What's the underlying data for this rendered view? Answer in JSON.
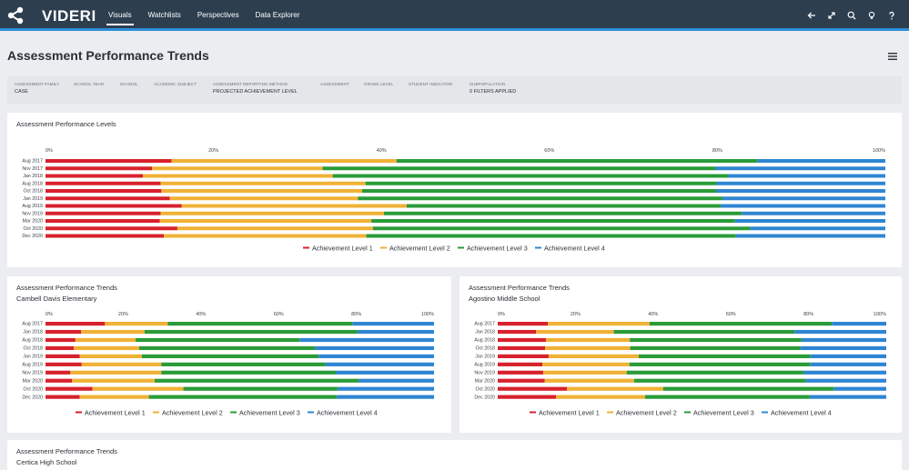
{
  "app": {
    "brand": "VIDERI",
    "nav": [
      "Visuals",
      "Watchlists",
      "Perspectives",
      "Data Explorer"
    ],
    "active_nav": "Visuals",
    "icons": [
      "back-arrow-icon",
      "expand-icon",
      "search-icon",
      "lightbulb-icon",
      "help-icon"
    ]
  },
  "page": {
    "title": "Assessment Performance Trends"
  },
  "filters": [
    {
      "label": "Assessment Family",
      "value": "CASE"
    },
    {
      "label": "School Year",
      "value": ""
    },
    {
      "label": "School",
      "value": ""
    },
    {
      "label": "Academic Subject",
      "value": ""
    },
    {
      "label": "Assessment Reporting Method",
      "value": "PROJECTED ACHIEVEMENT LEVEL"
    },
    {
      "label": "Assessment",
      "value": ""
    },
    {
      "label": "Grade Level",
      "value": ""
    },
    {
      "label": "Student Indicator",
      "value": ""
    },
    {
      "label": "Subpopulation",
      "value": "0 FILTERS APPLIED"
    }
  ],
  "colors": {
    "level1": "#d7222d",
    "level2": "#f0b135",
    "level3": "#2a9b38",
    "level4": "#2f86d2"
  },
  "panels": [
    {
      "title": "Assessment Performance Levels",
      "subtitle": ""
    },
    {
      "title": "Assessment Performance Trends",
      "subtitle": "Cambell Davis Elementary"
    },
    {
      "title": "Assessment Performance Trends",
      "subtitle": "Agostino Middle School"
    },
    {
      "title": "Assessment Performance Trends",
      "subtitle": "Certica High School"
    }
  ],
  "chart_data": [
    {
      "type": "bar",
      "orientation": "horizontal-stacked-100",
      "title": "Assessment Performance Levels",
      "ticks": [
        "0%",
        "20%",
        "40%",
        "60%",
        "80%",
        "100%"
      ],
      "categories": [
        "Aug 2017",
        "Nov 2017",
        "Jan 2018",
        "Aug 2018",
        "Oct 2018",
        "Jan 2019",
        "Aug 2019",
        "Nov 2019",
        "Mar 2020",
        "Oct 2020",
        "Dec 2020"
      ],
      "series": [
        {
          "name": "Achievement Level 1",
          "values": [
            15,
            12.7,
            11.6,
            13.7,
            13.8,
            14.8,
            16.2,
            13.7,
            13.6,
            15.7,
            14.1
          ]
        },
        {
          "name": "Achievement Level 2",
          "values": [
            26.8,
            20.3,
            22.6,
            24.4,
            23.9,
            22.4,
            26.8,
            26.6,
            25.2,
            23.3,
            24.1
          ]
        },
        {
          "name": "Achievement Level 3",
          "values": [
            43.0,
            46.8,
            47.1,
            41.8,
            42.2,
            43.4,
            37.4,
            42.6,
            43.3,
            44.9,
            44.0
          ]
        },
        {
          "name": "Achievement Level 4",
          "values": [
            15.2,
            20.2,
            18.7,
            20.1,
            20.1,
            19.4,
            19.6,
            17.1,
            17.9,
            16.1,
            17.8
          ]
        }
      ]
    },
    {
      "type": "bar",
      "orientation": "horizontal-stacked-100",
      "title": "Assessment Performance Trends",
      "subtitle": "Cambell Davis Elementary",
      "ticks": [
        "0%",
        "20%",
        "40%",
        "60%",
        "80%",
        "100%"
      ],
      "categories": [
        "Aug 2017",
        "Jan 2018",
        "Aug 2018",
        "Oct 2018",
        "Jan 2019",
        "Aug 2019",
        "Nov 2019",
        "Mar 2020",
        "Oct 2020",
        "Dec 2020"
      ],
      "series": [
        {
          "name": "Achievement Level 1",
          "values": [
            15.3,
            9.2,
            7.7,
            7.3,
            8.8,
            9.3,
            6.4,
            6.8,
            12.1,
            8.8
          ]
        },
        {
          "name": "Achievement Level 2",
          "values": [
            16.2,
            16.3,
            15.5,
            16.8,
            16.0,
            20.5,
            23.4,
            21.3,
            23.4,
            17.8
          ]
        },
        {
          "name": "Achievement Level 3",
          "values": [
            47.5,
            54.8,
            42.2,
            45.2,
            45.5,
            42.3,
            44.9,
            52.6,
            39.7,
            48.4
          ]
        },
        {
          "name": "Achievement Level 4",
          "values": [
            21.0,
            19.7,
            34.6,
            30.7,
            29.7,
            27.9,
            25.3,
            19.3,
            24.8,
            25.0
          ]
        }
      ]
    },
    {
      "type": "bar",
      "orientation": "horizontal-stacked-100",
      "title": "Assessment Performance Trends",
      "subtitle": "Agostino Middle School",
      "ticks": [
        "0%",
        "20%",
        "40%",
        "60%",
        "80%",
        "100%"
      ],
      "categories": [
        "Aug 2017",
        "Jan 2018",
        "Aug 2018",
        "Oct 2018",
        "Jan 2019",
        "Aug 2019",
        "Nov 2019",
        "Mar 2020",
        "Oct 2020",
        "Dec 2020"
      ],
      "series": [
        {
          "name": "Achievement Level 1",
          "values": [
            12.9,
            9.9,
            12.4,
            12.2,
            13.1,
            11.5,
            11.7,
            12.1,
            17.8,
            15.0
          ]
        },
        {
          "name": "Achievement Level 2",
          "values": [
            26.2,
            20.0,
            21.6,
            21.9,
            23.2,
            22.4,
            21.5,
            23.0,
            24.8,
            22.9
          ]
        },
        {
          "name": "Achievement Level 3",
          "values": [
            46.9,
            46.5,
            44.2,
            43.8,
            44.2,
            46.6,
            45.5,
            44.2,
            43.9,
            42.4
          ]
        },
        {
          "name": "Achievement Level 4",
          "values": [
            14.0,
            23.6,
            21.8,
            22.1,
            19.5,
            19.5,
            21.3,
            20.7,
            13.5,
            19.7
          ]
        }
      ]
    }
  ]
}
